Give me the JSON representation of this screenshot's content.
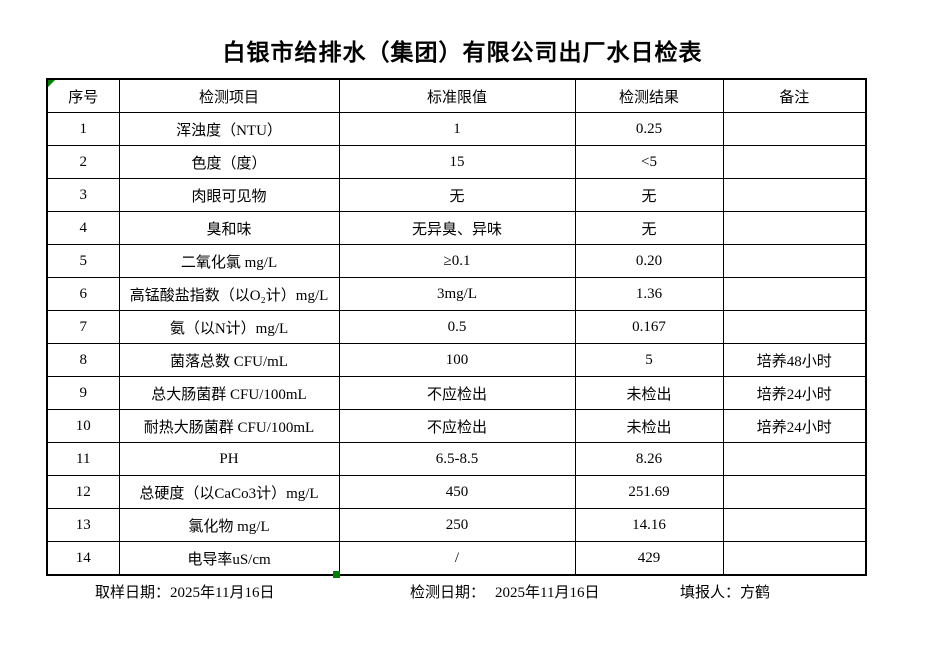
{
  "title": "白银市给排水（集团）有限公司出厂水日检表",
  "table": {
    "headers": [
      "序号",
      "检测项目",
      "标准限值",
      "检测结果",
      "备注"
    ],
    "rows": [
      [
        "1",
        "浑浊度（NTU）",
        "1",
        "0.25",
        ""
      ],
      [
        "2",
        "色度（度）",
        "15",
        "<5",
        ""
      ],
      [
        "3",
        "肉眼可见物",
        "无",
        "无",
        ""
      ],
      [
        "4",
        "臭和味",
        "无异臭、异味",
        "无",
        ""
      ],
      [
        "5",
        "二氧化氯 mg/L",
        "≥0.1",
        "0.20",
        ""
      ],
      [
        "6",
        "高锰酸盐指数（以O₂计）mg/L",
        "3mg/L",
        "1.36",
        ""
      ],
      [
        "7",
        "氨（以N计）mg/L",
        "0.5",
        "0.167",
        ""
      ],
      [
        "8",
        "菌落总数 CFU/mL",
        "100",
        "5",
        "培养48小时"
      ],
      [
        "9",
        "总大肠菌群 CFU/100mL",
        "不应检出",
        "未检出",
        "培养24小时"
      ],
      [
        "10",
        "耐热大肠菌群 CFU/100mL",
        "不应检出",
        "未检出",
        "培养24小时"
      ],
      [
        "11",
        "PH",
        "6.5-8.5",
        "8.26",
        ""
      ],
      [
        "12",
        "总硬度（以CaCo3计）mg/L",
        "450",
        "251.69",
        ""
      ],
      [
        "13",
        "氯化物 mg/L",
        "250",
        "14.16",
        ""
      ],
      [
        "14",
        "电导率uS/cm",
        "/",
        "429",
        ""
      ]
    ]
  },
  "footer": {
    "sample_date_label": "取样日期：",
    "sample_date": "2025年11月16日",
    "test_date_label": "检测日期：",
    "test_date": "2025年11月16日",
    "reporter_label": "填报人：",
    "reporter": "方鹤"
  },
  "colors": {
    "marker_green": "#008000",
    "border": "#000000"
  }
}
